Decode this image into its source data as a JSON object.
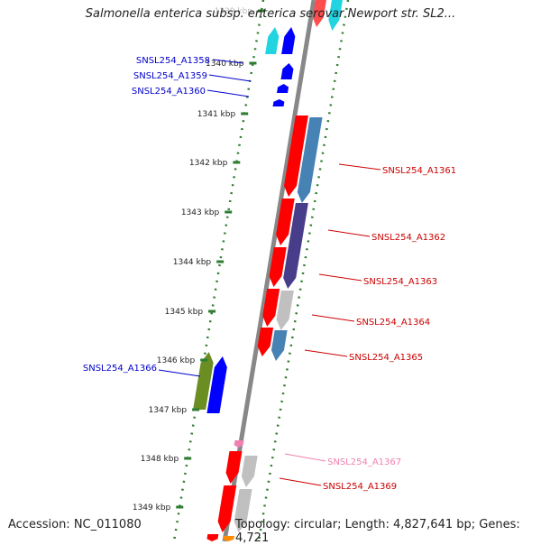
{
  "title": "Salmonella enterica subsp. enterica serovar Newport str. SL2...",
  "footer": {
    "accession": "Accession: NC_011080",
    "summary": "Topology: circular; Length: 4,827,641 bp; Genes: 4,721"
  },
  "colors": {
    "backbone": "#888888",
    "tick": "#2e7d32",
    "forward_label": "#0000cc",
    "reverse_label": "#cc0000",
    "rna_label": "#f080b0"
  },
  "kbp_ticks": [
    {
      "label": "1339 kbp",
      "faded": true
    },
    {
      "label": "1340 kbp"
    },
    {
      "label": "1341 kbp"
    },
    {
      "label": "1342 kbp"
    },
    {
      "label": "1343 kbp"
    },
    {
      "label": "1344 kbp"
    },
    {
      "label": "1345 kbp"
    },
    {
      "label": "1346 kbp"
    },
    {
      "label": "1347 kbp"
    },
    {
      "label": "1348 kbp"
    },
    {
      "label": "1349 kbp"
    }
  ],
  "gene_labels": [
    {
      "text": "SNSL254_A1358",
      "strand": "forward"
    },
    {
      "text": "SNSL254_A1359",
      "strand": "forward"
    },
    {
      "text": "SNSL254_A1360",
      "strand": "forward"
    },
    {
      "text": "SNSL254_A1361",
      "strand": "reverse"
    },
    {
      "text": "SNSL254_A1362",
      "strand": "reverse"
    },
    {
      "text": "SNSL254_A1363",
      "strand": "reverse"
    },
    {
      "text": "SNSL254_A1364",
      "strand": "reverse"
    },
    {
      "text": "SNSL254_A1365",
      "strand": "reverse"
    },
    {
      "text": "SNSL254_A1366",
      "strand": "forward"
    },
    {
      "text": "SNSL254_A1367",
      "strand": "rna"
    },
    {
      "text": "SNSL254_A1369",
      "strand": "reverse"
    }
  ]
}
